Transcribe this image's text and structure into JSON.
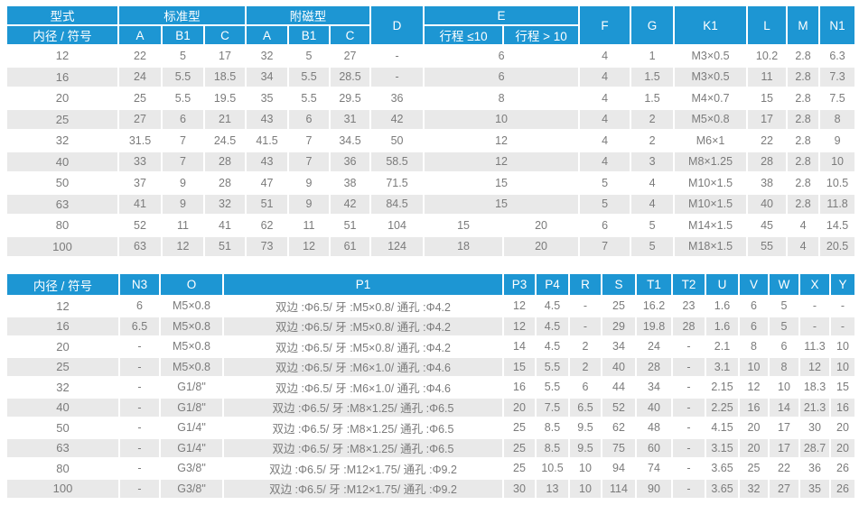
{
  "colors": {
    "header_bg": "#1d96d3",
    "header_text": "#ffffff",
    "row_stripe": "#e9e9e9",
    "body_text": "#7b7b7b"
  },
  "upper_table": {
    "header": {
      "type_label": "型式",
      "bore_label": "内径 / 符号",
      "standard_label": "标准型",
      "magnet_label": "附磁型",
      "standard_sub_labels": [
        "A",
        "B1",
        "C"
      ],
      "magnet_sub_labels": [
        "A",
        "B1",
        "C"
      ],
      "d_label": "D",
      "e_label": "E",
      "e_sub_labels": [
        "行程 ≤10",
        "行程 > 10"
      ],
      "f_label": "F",
      "g_label": "G",
      "k1_label": "K1",
      "l_label": "L",
      "m_label": "M",
      "n1_label": "N1"
    },
    "rows": [
      {
        "bore": "12",
        "left": [
          "22",
          "5",
          "17",
          "32",
          "5",
          "27",
          "-"
        ],
        "e": [
          "6"
        ],
        "right": [
          "4",
          "1",
          "M3×0.5",
          "10.2",
          "2.8",
          "6.3"
        ]
      },
      {
        "bore": "16",
        "left": [
          "24",
          "5.5",
          "18.5",
          "34",
          "5.5",
          "28.5",
          "-"
        ],
        "e": [
          "6"
        ],
        "right": [
          "4",
          "1.5",
          "M3×0.5",
          "11",
          "2.8",
          "7.3"
        ]
      },
      {
        "bore": "20",
        "left": [
          "25",
          "5.5",
          "19.5",
          "35",
          "5.5",
          "29.5",
          "36"
        ],
        "e": [
          "8"
        ],
        "right": [
          "4",
          "1.5",
          "M4×0.7",
          "15",
          "2.8",
          "7.5"
        ]
      },
      {
        "bore": "25",
        "left": [
          "27",
          "6",
          "21",
          "43",
          "6",
          "31",
          "42"
        ],
        "e": [
          "10"
        ],
        "right": [
          "4",
          "2",
          "M5×0.8",
          "17",
          "2.8",
          "8"
        ]
      },
      {
        "bore": "32",
        "left": [
          "31.5",
          "7",
          "24.5",
          "41.5",
          "7",
          "34.5",
          "50"
        ],
        "e": [
          "12"
        ],
        "right": [
          "4",
          "2",
          "M6×1",
          "22",
          "2.8",
          "9"
        ]
      },
      {
        "bore": "40",
        "left": [
          "33",
          "7",
          "28",
          "43",
          "7",
          "36",
          "58.5"
        ],
        "e": [
          "12"
        ],
        "right": [
          "4",
          "3",
          "M8×1.25",
          "28",
          "2.8",
          "10"
        ]
      },
      {
        "bore": "50",
        "left": [
          "37",
          "9",
          "28",
          "47",
          "9",
          "38",
          "71.5"
        ],
        "e": [
          "15"
        ],
        "right": [
          "5",
          "4",
          "M10×1.5",
          "38",
          "2.8",
          "10.5"
        ]
      },
      {
        "bore": "63",
        "left": [
          "41",
          "9",
          "32",
          "51",
          "9",
          "42",
          "84.5"
        ],
        "e": [
          "15"
        ],
        "right": [
          "5",
          "4",
          "M10×1.5",
          "40",
          "2.8",
          "11.8"
        ]
      },
      {
        "bore": "80",
        "left": [
          "52",
          "11",
          "41",
          "62",
          "11",
          "51",
          "104"
        ],
        "e": [
          "15",
          "20"
        ],
        "right": [
          "6",
          "5",
          "M14×1.5",
          "45",
          "4",
          "14.5"
        ]
      },
      {
        "bore": "100",
        "left": [
          "63",
          "12",
          "51",
          "73",
          "12",
          "61",
          "124"
        ],
        "e": [
          "18",
          "20"
        ],
        "right": [
          "7",
          "5",
          "M18×1.5",
          "55",
          "4",
          "20.5"
        ]
      }
    ]
  },
  "lower_table": {
    "header_labels": [
      "内径 / 符号",
      "N3",
      "O",
      "P1",
      "P3",
      "P4",
      "R",
      "S",
      "T1",
      "T2",
      "U",
      "V",
      "W",
      "X",
      "Y"
    ],
    "rows": [
      {
        "bore": "12",
        "cells": [
          "6",
          "M5×0.8",
          "双边 :Φ6.5/ 牙 :M5×0.8/ 通孔 :Φ4.2",
          "12",
          "4.5",
          "-",
          "25",
          "16.2",
          "23",
          "1.6",
          "6",
          "5",
          "-",
          "-"
        ]
      },
      {
        "bore": "16",
        "cells": [
          "6.5",
          "M5×0.8",
          "双边 :Φ6.5/ 牙 :M5×0.8/ 通孔 :Φ4.2",
          "12",
          "4.5",
          "-",
          "29",
          "19.8",
          "28",
          "1.6",
          "6",
          "5",
          "-",
          "-"
        ]
      },
      {
        "bore": "20",
        "cells": [
          "-",
          "M5×0.8",
          "双边 :Φ6.5/ 牙 :M5×0.8/ 通孔 :Φ4.2",
          "14",
          "4.5",
          "2",
          "34",
          "24",
          "-",
          "2.1",
          "8",
          "6",
          "11.3",
          "10"
        ]
      },
      {
        "bore": "25",
        "cells": [
          "-",
          "M5×0.8",
          "双边 :Φ6.5/ 牙 :M6×1.0/ 通孔 :Φ4.6",
          "15",
          "5.5",
          "2",
          "40",
          "28",
          "-",
          "3.1",
          "10",
          "8",
          "12",
          "10"
        ]
      },
      {
        "bore": "32",
        "cells": [
          "-",
          "G1/8\"",
          "双边 :Φ6.5/ 牙 :M6×1.0/ 通孔 :Φ4.6",
          "16",
          "5.5",
          "6",
          "44",
          "34",
          "-",
          "2.15",
          "12",
          "10",
          "18.3",
          "15"
        ]
      },
      {
        "bore": "40",
        "cells": [
          "-",
          "G1/8\"",
          "双边 :Φ6.5/ 牙 :M8×1.25/ 通孔 :Φ6.5",
          "20",
          "7.5",
          "6.5",
          "52",
          "40",
          "-",
          "2.25",
          "16",
          "14",
          "21.3",
          "16"
        ]
      },
      {
        "bore": "50",
        "cells": [
          "-",
          "G1/4\"",
          "双边 :Φ6.5/ 牙 :M8×1.25/ 通孔 :Φ6.5",
          "25",
          "8.5",
          "9.5",
          "62",
          "48",
          "-",
          "4.15",
          "20",
          "17",
          "30",
          "20"
        ]
      },
      {
        "bore": "63",
        "cells": [
          "-",
          "G1/4\"",
          "双边 :Φ6.5/ 牙 :M8×1.25/ 通孔 :Φ6.5",
          "25",
          "8.5",
          "9.5",
          "75",
          "60",
          "-",
          "3.15",
          "20",
          "17",
          "28.7",
          "20"
        ]
      },
      {
        "bore": "80",
        "cells": [
          "-",
          "G3/8\"",
          "双边 :Φ6.5/ 牙 :M12×1.75/ 通孔 :Φ9.2",
          "25",
          "10.5",
          "10",
          "94",
          "74",
          "-",
          "3.65",
          "25",
          "22",
          "36",
          "26"
        ]
      },
      {
        "bore": "100",
        "cells": [
          "-",
          "G3/8\"",
          "双边 :Φ6.5/ 牙 :M12×1.75/ 通孔 :Φ9.2",
          "30",
          "13",
          "10",
          "114",
          "90",
          "-",
          "3.65",
          "32",
          "27",
          "35",
          "26"
        ]
      }
    ]
  }
}
